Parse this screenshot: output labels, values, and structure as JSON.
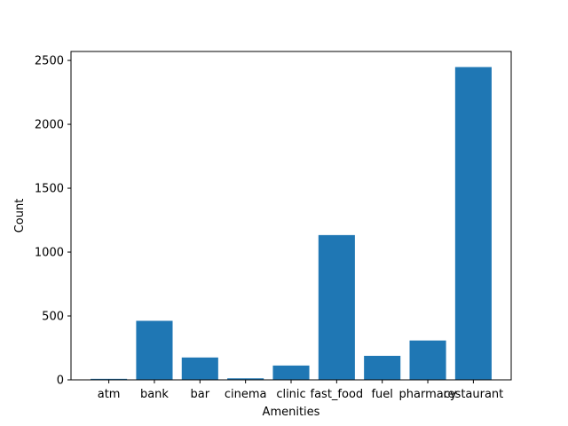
{
  "chart_data": {
    "type": "bar",
    "categories": [
      "atm",
      "bank",
      "bar",
      "cinema",
      "clinic",
      "fast_food",
      "fuel",
      "pharmacy",
      "restaurant"
    ],
    "values": [
      8,
      462,
      175,
      12,
      112,
      1133,
      188,
      308,
      2448
    ],
    "xlabel": "Amenities",
    "ylabel": "Count",
    "ylim": [
      0,
      2570
    ],
    "yticks": [
      "0",
      "500",
      "1000",
      "1500",
      "2000",
      "2500"
    ],
    "bar_color": "#1f77b4",
    "grid": false,
    "legend": "none"
  }
}
